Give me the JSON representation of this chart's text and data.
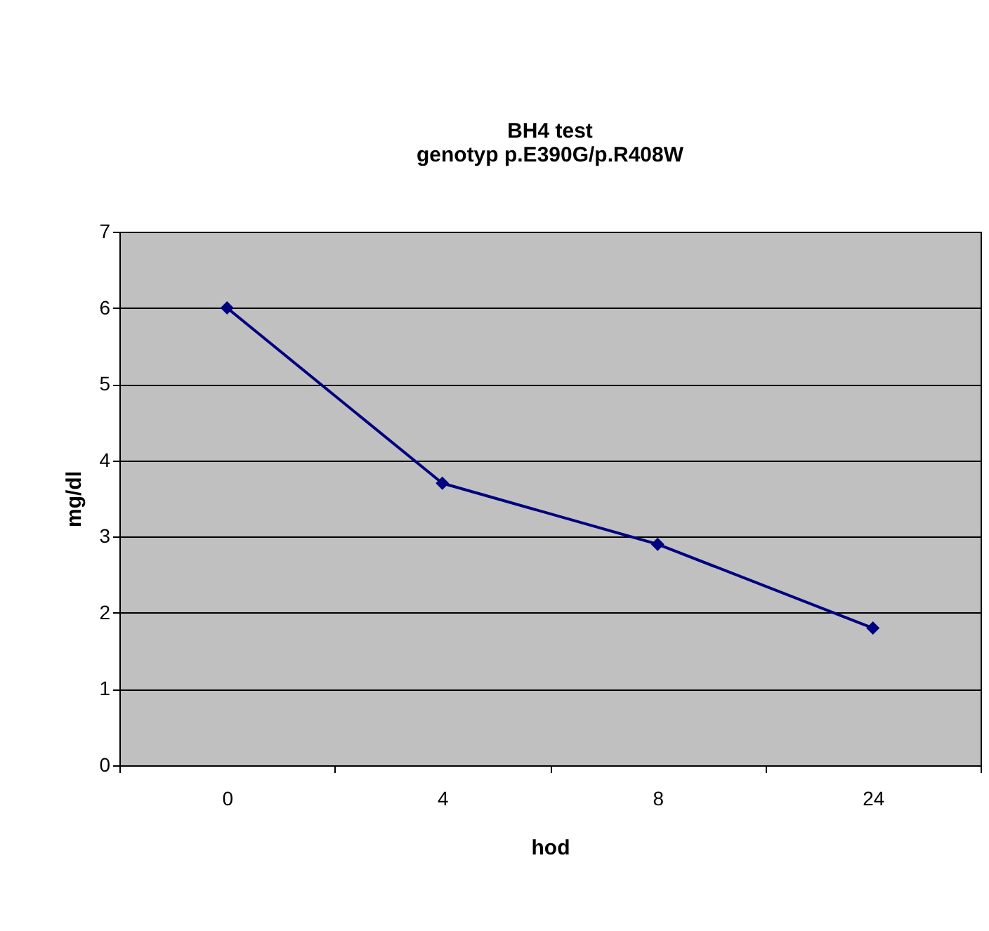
{
  "chart_data": {
    "type": "line",
    "title": [
      "BH4 test",
      "genotyp p.E390G/p.R408W"
    ],
    "xlabel": "hod",
    "ylabel": "mg/dl",
    "categories": [
      "0",
      "4",
      "8",
      "24"
    ],
    "series": [
      {
        "color": "#000080",
        "values": [
          6.0,
          3.7,
          2.9,
          1.8
        ]
      }
    ],
    "ylim": [
      0,
      7
    ],
    "yticks": [
      0,
      1,
      2,
      3,
      4,
      5,
      6,
      7
    ],
    "grid": "y",
    "marker": "diamond",
    "line_style": "solid"
  }
}
